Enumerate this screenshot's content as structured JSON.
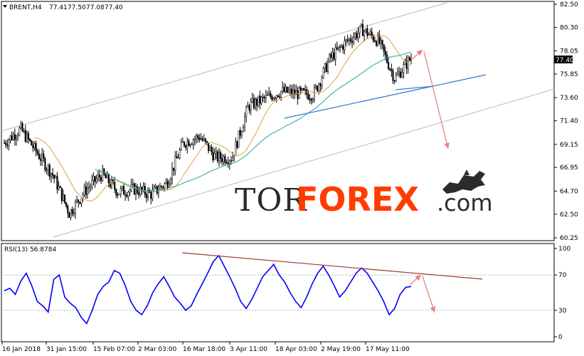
{
  "chart_data": [
    {
      "type": "candlestick",
      "header": {
        "symbol": "BRENT,H4",
        "open": "77.41",
        "high": "77.50",
        "low": "77.08",
        "close": "77.40"
      },
      "current_price_label": "77.40",
      "y_ticks": [
        "82.50",
        "80.30",
        "78.05",
        "75.85",
        "73.60",
        "71.40",
        "69.15",
        "66.95",
        "64.70",
        "62.50",
        "60.25"
      ],
      "ylim": [
        60.25,
        82.5
      ],
      "x_ticks": [
        "16 Jan 2018",
        "31 Jan 15:00",
        "15 Feb 07:00",
        "2 Mar 03:00",
        "16 Mar 18:00",
        "3 Apr 11:00",
        "18 Apr 03:00",
        "2 May 19:00",
        "17 May 11:00"
      ],
      "close_trend": [
        {
          "x": "16 Jan 2018",
          "y": 69.3
        },
        {
          "x": "",
          "y": 70.6
        },
        {
          "x": "31 Jan 15:00",
          "y": 68.4
        },
        {
          "x": "",
          "y": 66.2
        },
        {
          "x": "",
          "y": 62.6
        },
        {
          "x": "15 Feb 07:00",
          "y": 64.8
        },
        {
          "x": "",
          "y": 66.3
        },
        {
          "x": "",
          "y": 64.6
        },
        {
          "x": "2 Mar 03:00",
          "y": 64.9
        },
        {
          "x": "",
          "y": 64.4
        },
        {
          "x": "",
          "y": 65.5
        },
        {
          "x": "16 Mar 18:00",
          "y": 69.3
        },
        {
          "x": "",
          "y": 69.9
        },
        {
          "x": "",
          "y": 67.9
        },
        {
          "x": "3 Apr 11:00",
          "y": 67.9
        },
        {
          "x": "",
          "y": 72.8
        },
        {
          "x": "",
          "y": 73.5
        },
        {
          "x": "18 Apr 03:00",
          "y": 74.2
        },
        {
          "x": "",
          "y": 74.0
        },
        {
          "x": "",
          "y": 73.9
        },
        {
          "x": "2 May 19:00",
          "y": 77.3
        },
        {
          "x": "",
          "y": 78.9
        },
        {
          "x": "",
          "y": 80.1
        },
        {
          "x": "17 May 11:00",
          "y": 79.0
        },
        {
          "x": "",
          "y": 75.4
        },
        {
          "x": "",
          "y": 77.4
        }
      ],
      "watermark": {
        "part1": "TOR",
        "part2": "FOREX",
        "part3": ".com"
      },
      "colors": {
        "candles": "#000000",
        "ma_fast": "#e0a040",
        "ma_slow": "#2aa198",
        "channel_lines": "#b8c8dc",
        "trend_line": "#3a7bd5",
        "forecast_arrows": "#f08080",
        "watermark_accent": "#ff3c00"
      }
    },
    {
      "type": "line",
      "title": "RSI(13) 56.8784",
      "y_ticks": [
        "100",
        "70",
        "30",
        "0"
      ],
      "levels": [
        70,
        30
      ],
      "ylim": [
        0,
        100
      ],
      "series": [
        {
          "values": [
            52,
            55,
            48,
            63,
            72,
            58,
            40,
            35,
            28,
            65,
            70,
            45,
            38,
            33,
            22,
            15,
            30,
            48,
            57,
            62,
            75,
            72,
            58,
            40,
            30,
            25,
            35,
            50,
            60,
            68,
            57,
            45,
            38,
            30,
            35,
            48,
            60,
            72,
            85,
            92,
            80,
            68,
            55,
            40,
            32,
            42,
            55,
            68,
            75,
            82,
            70,
            62,
            50,
            40,
            33,
            45,
            60,
            72,
            80,
            70,
            58,
            45,
            52,
            62,
            72,
            78,
            72,
            62,
            52,
            40,
            25,
            32,
            48,
            56,
            57
          ]
        }
      ],
      "colors": {
        "rsi": "#0000ff",
        "divergence_line": "#9b3a2a",
        "forecast_arrows": "#f08080"
      }
    }
  ]
}
